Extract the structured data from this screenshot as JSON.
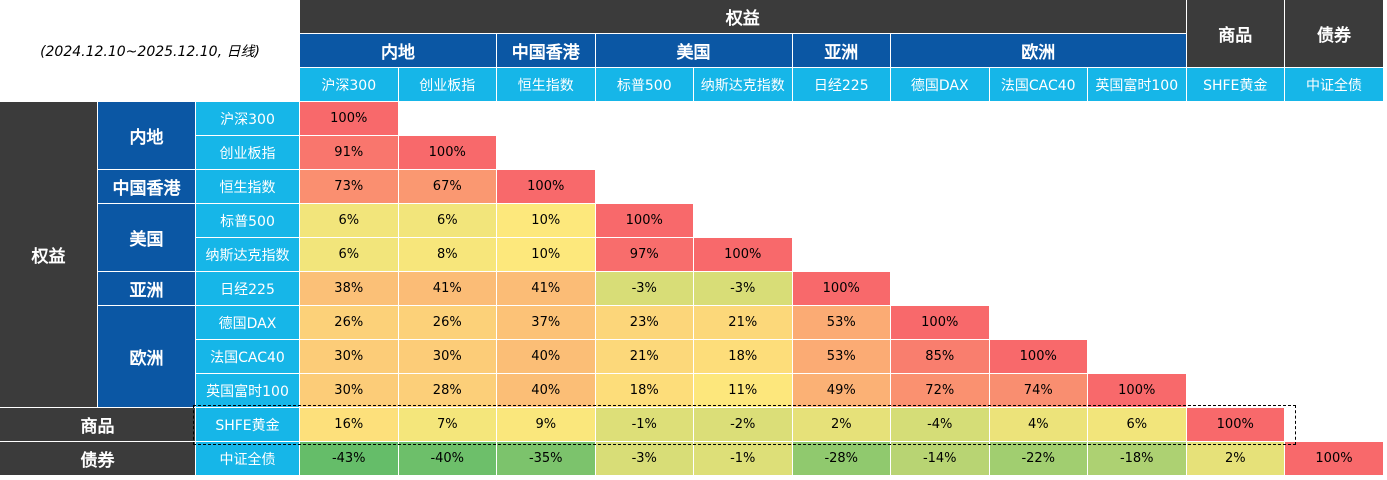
{
  "period_label": "(2024.12.10~2025.12.10, 日线)",
  "top_groups": {
    "equity": "权益",
    "commodity": "商品",
    "bond": "债券"
  },
  "regions": [
    "内地",
    "中国香港",
    "美国",
    "亚洲",
    "欧洲"
  ],
  "indices": [
    "沪深300",
    "创业板指",
    "恒生指数",
    "标普500",
    "纳斯达克指数",
    "日经225",
    "德国DAX",
    "法国CAC40",
    "英国富时100",
    "SHFE黄金",
    "中证全债"
  ],
  "row_groups": {
    "equity": "权益",
    "commodity": "商品",
    "bond": "债券"
  },
  "matrix": [
    [
      "100%"
    ],
    [
      "91%",
      "100%"
    ],
    [
      "73%",
      "67%",
      "100%"
    ],
    [
      "6%",
      "6%",
      "10%",
      "100%"
    ],
    [
      "6%",
      "8%",
      "10%",
      "97%",
      "100%"
    ],
    [
      "38%",
      "41%",
      "41%",
      "-3%",
      "-3%",
      "100%"
    ],
    [
      "26%",
      "26%",
      "37%",
      "23%",
      "21%",
      "53%",
      "100%"
    ],
    [
      "30%",
      "30%",
      "40%",
      "21%",
      "18%",
      "53%",
      "85%",
      "100%"
    ],
    [
      "30%",
      "28%",
      "40%",
      "18%",
      "11%",
      "49%",
      "72%",
      "74%",
      "100%"
    ],
    [
      "16%",
      "7%",
      "9%",
      "-1%",
      "-2%",
      "2%",
      "-4%",
      "4%",
      "6%",
      "100%"
    ],
    [
      "-43%",
      "-40%",
      "-35%",
      "-3%",
      "-1%",
      "-28%",
      "-14%",
      "-22%",
      "-18%",
      "2%",
      "100%"
    ]
  ],
  "colors": {
    "dark_header": "#3b3b3b",
    "region_header": "#0b57a4",
    "index_header": "#16b6e8",
    "scale_low": "#5fbb68",
    "scale_mid": "#fde87c",
    "scale_high": "#f8696b"
  },
  "highlighted_row": "SHFE黄金"
}
